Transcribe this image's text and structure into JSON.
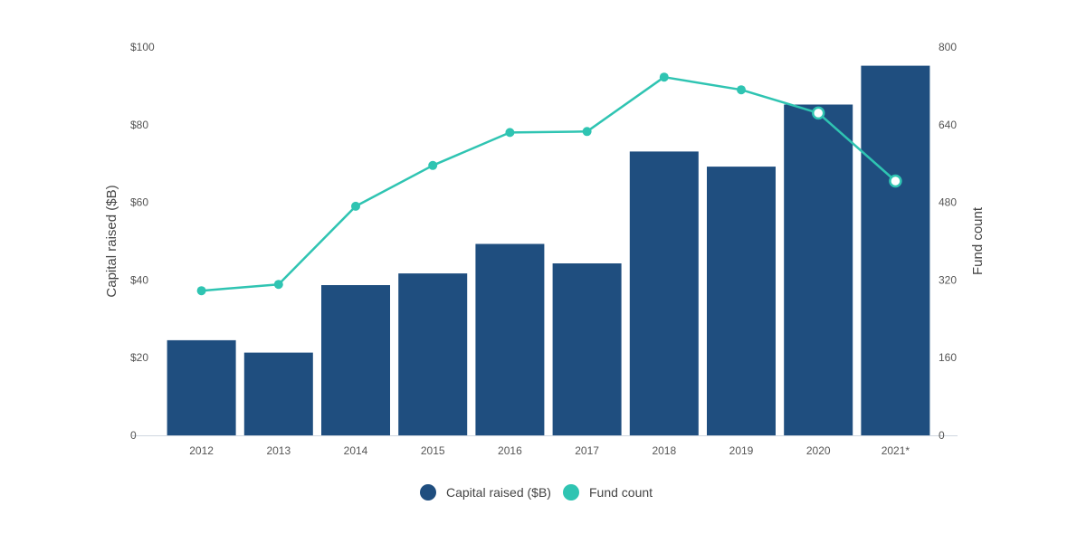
{
  "chart_data": {
    "type": "bar",
    "categories": [
      "2012",
      "2013",
      "2014",
      "2015",
      "2016",
      "2017",
      "2018",
      "2019",
      "2020",
      "2021*"
    ],
    "series": [
      {
        "name": "Capital raised ($B)",
        "type": "bar",
        "axis": "left",
        "color": "#1f4e7f",
        "values": [
          24.5,
          21.3,
          38.7,
          41.7,
          49.3,
          44.3,
          73.1,
          69.2,
          85.2,
          95.2
        ]
      },
      {
        "name": "Fund count",
        "type": "line",
        "axis": "right",
        "color": "#2fc4b2",
        "values": [
          298,
          311,
          472,
          556,
          624,
          626,
          738,
          712,
          664,
          524
        ]
      }
    ],
    "y_left": {
      "label": "Capital raised ($B)",
      "lim": [
        0,
        100
      ],
      "ticks": [
        0,
        20,
        40,
        60,
        80,
        100
      ],
      "tick_labels": [
        "0",
        "$20",
        "$40",
        "$60",
        "$80",
        "$100"
      ]
    },
    "y_right": {
      "label": "Fund count",
      "lim": [
        0,
        800
      ],
      "ticks": [
        0,
        160,
        320,
        480,
        640,
        800
      ],
      "tick_labels": [
        "0",
        "160",
        "320",
        "480",
        "640",
        "800"
      ]
    },
    "hollow_markers_from_index": 8,
    "grid": false,
    "legend": {
      "position": "bottom-center",
      "items": [
        "Capital raised ($B)",
        "Fund count"
      ]
    }
  }
}
